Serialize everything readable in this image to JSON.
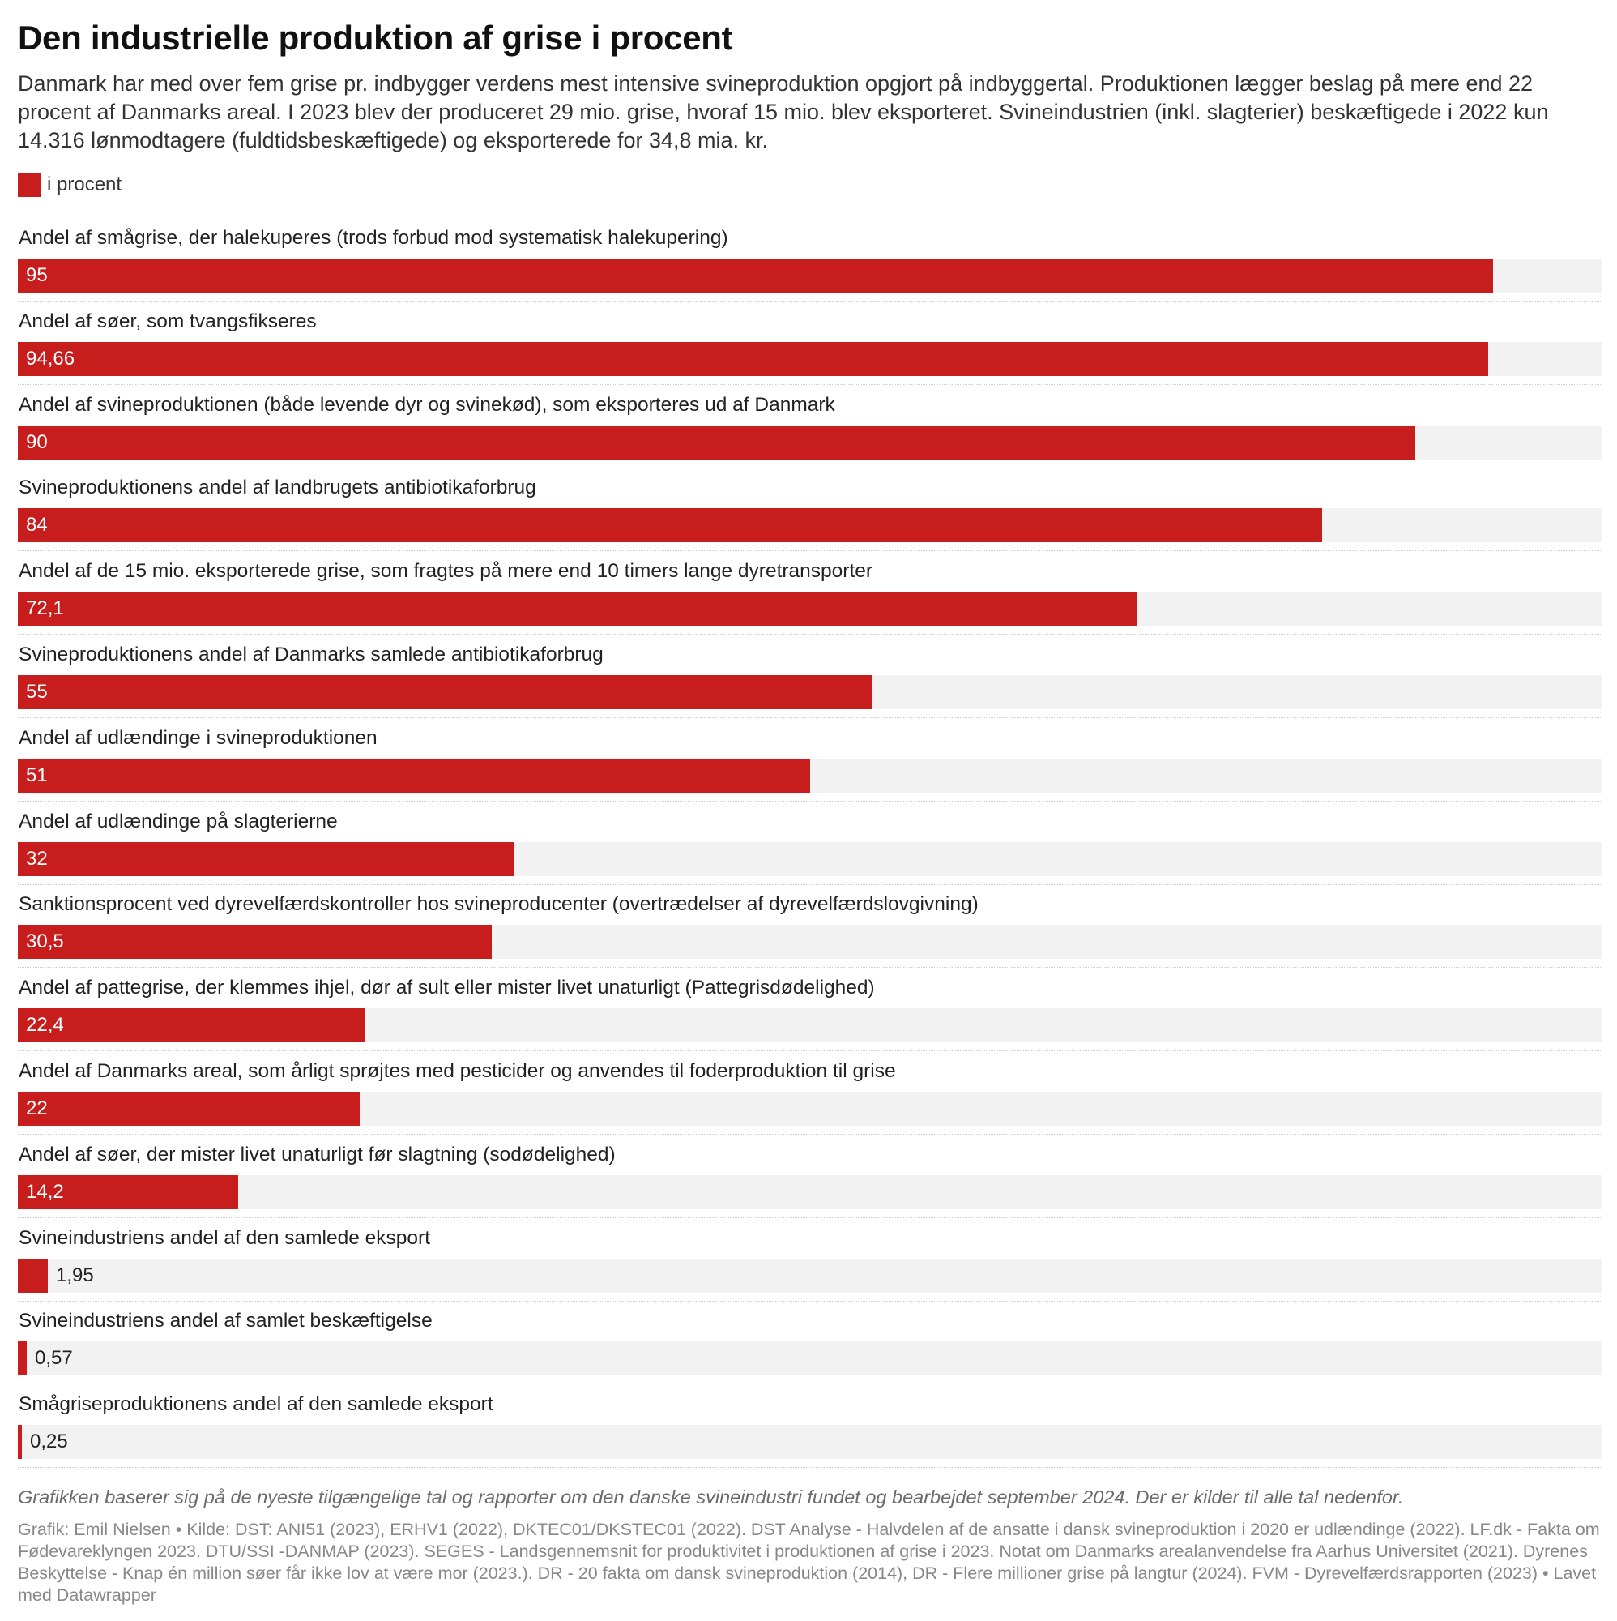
{
  "header": {
    "title": "Den industrielle produktion af grise i procent",
    "subtitle": "Danmark har med over fem grise pr. indbygger verdens mest intensive svineproduktion opgjort på indbyggertal. Produktionen lægger beslag på mere end 22 procent af Danmarks areal. I 2023 blev der produceret 29 mio. grise, hvoraf 15 mio. blev eksporteret. Svineindustrien (inkl. slagterier) beskæftigede i 2022 kun 14.316 lønmodtagere (fuldtidsbeskæftigede) og eksporterede for 34,8 mia. kr."
  },
  "legend": {
    "label": "i procent",
    "color": "#c71e1d"
  },
  "chart_data": {
    "type": "bar",
    "orientation": "horizontal",
    "xlim": [
      0,
      100
    ],
    "bar_color": "#c71e1d",
    "track_color": "#f2f2f2",
    "series": [
      {
        "name": "i procent",
        "values": [
          95,
          94.66,
          90,
          84,
          72.1,
          55,
          51,
          32,
          30.5,
          22.4,
          22,
          14.2,
          1.95,
          0.57,
          0.25
        ],
        "labels": [
          "95",
          "94,66",
          "90",
          "84",
          "72,1",
          "55",
          "51",
          "32",
          "30,5",
          "22,4",
          "22",
          "14,2",
          "1,95",
          "0,57",
          "0,25"
        ]
      }
    ],
    "categories": [
      "Andel af smågrise, der halekuperes (trods forbud mod systematisk halekupering)",
      "Andel af søer, som tvangsfikseres",
      "Andel af svineproduktionen (både levende dyr og svinekød), som eksporteres ud af Danmark",
      "Svineproduktionens andel af landbrugets antibiotikaforbrug",
      "Andel af de 15 mio. eksporterede grise, som fragtes på mere end 10 timers lange dyretransporter",
      "Svineproduktionens andel af Danmarks samlede antibiotikaforbrug",
      "Andel af udlændinge i svineproduktionen",
      "Andel af udlændinge på slagterierne",
      "Sanktionsprocent ved dyrevelfærdskontroller hos svineproducenter (overtrædelser af dyrevelfærdslovgivning)",
      "Andel af pattegrise, der klemmes ihjel, dør af sult eller mister livet unaturligt (Pattegrisdødelighed)",
      "Andel af Danmarks areal, som årligt sprøjtes med pesticider og anvendes til foderproduktion til grise",
      "Andel af søer, der mister livet unaturligt før slagtning (sodødelighed)",
      "Svineindustriens andel af den samlede eksport",
      "Svineindustriens andel af samlet beskæftigelse",
      "Smågriseproduktionens andel af den samlede eksport"
    ]
  },
  "footer": {
    "note": "Grafikken baserer sig på de nyeste tilgængelige tal og rapporter om den danske svineindustri fundet og bearbejdet september 2024. Der er kilder til alle tal nedenfor.",
    "source": "Grafik: Emil Nielsen • Kilde: DST: ANI51 (2023), ERHV1 (2022), DKTEC01/DKSTEC01 (2022). DST Analyse - Halvdelen af de ansatte i dansk svineproduktion i 2020 er udlændinge (2022). LF.dk - Fakta om Fødevareklyngen 2023. DTU/SSI -DANMAP (2023). SEGES - Landsgennemsnit for produktivitet i produktionen af grise i 2023. Notat om Danmarks arealanvendelse fra Aarhus Universitet (2021). Dyrenes Beskyttelse - Knap én million søer får ikke lov at være mor (2023.). DR - 20 fakta om dansk svineproduktion (2014), DR - Flere millioner grise på langtur (2024). FVM - Dyrevelfærdsrapporten (2023) • Lavet med Datawrapper"
  }
}
